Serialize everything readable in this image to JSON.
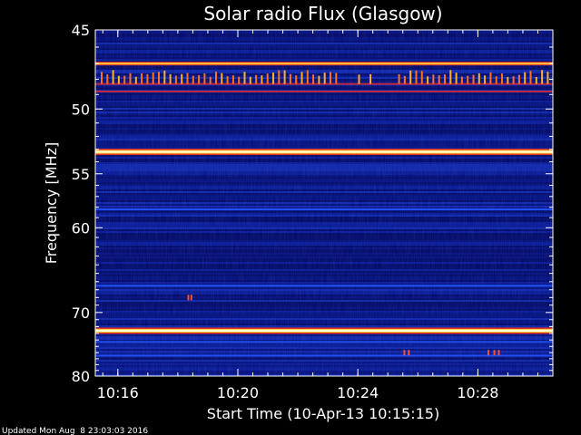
{
  "chart_data": {
    "type": "heatmap",
    "title": "Solar radio Flux (Glasgow)",
    "xlabel": "Start Time (10-Apr-13 10:15:15)",
    "ylabel": "Frequency [MHz]",
    "x_ticks": [
      "10:16",
      "10:20",
      "10:24",
      "10:28"
    ],
    "x_tick_minutes": [
      0.75,
      4.75,
      8.75,
      12.75
    ],
    "x_range_minutes": [
      0,
      15.25
    ],
    "y_ticks": [
      45,
      50,
      55,
      60,
      70,
      80
    ],
    "y_range": [
      45,
      80
    ],
    "colormap": [
      "#000064",
      "#1030d0",
      "#e03020",
      "#ffd040",
      "#ffffd8"
    ],
    "persistent_lines": [
      {
        "freq": 47.0,
        "intensity": "bright"
      },
      {
        "freq": 48.3,
        "intensity": "medium"
      },
      {
        "freq": 48.8,
        "intensity": "medium"
      },
      {
        "freq": 53.2,
        "intensity": "very-bright"
      },
      {
        "freq": 58.2,
        "intensity": "faint"
      },
      {
        "freq": 66.5,
        "intensity": "faint"
      },
      {
        "freq": 72.6,
        "intensity": "very-bright"
      },
      {
        "freq": 74.3,
        "intensity": "faint"
      },
      {
        "freq": 76.5,
        "intensity": "faint"
      }
    ],
    "bursts": [
      {
        "t_min": 3.1,
        "freq": 68.0
      },
      {
        "t_min": 3.2,
        "freq": 68.0
      },
      {
        "t_min": 10.3,
        "freq": 76.0
      },
      {
        "t_min": 10.45,
        "freq": 76.0
      },
      {
        "t_min": 13.1,
        "freq": 76.0
      },
      {
        "t_min": 13.3,
        "freq": 76.0
      },
      {
        "t_min": 13.45,
        "freq": 76.0
      }
    ],
    "grid": false
  },
  "footer": {
    "updated": "Updated Mon Aug  8 23:03:03 2016"
  }
}
